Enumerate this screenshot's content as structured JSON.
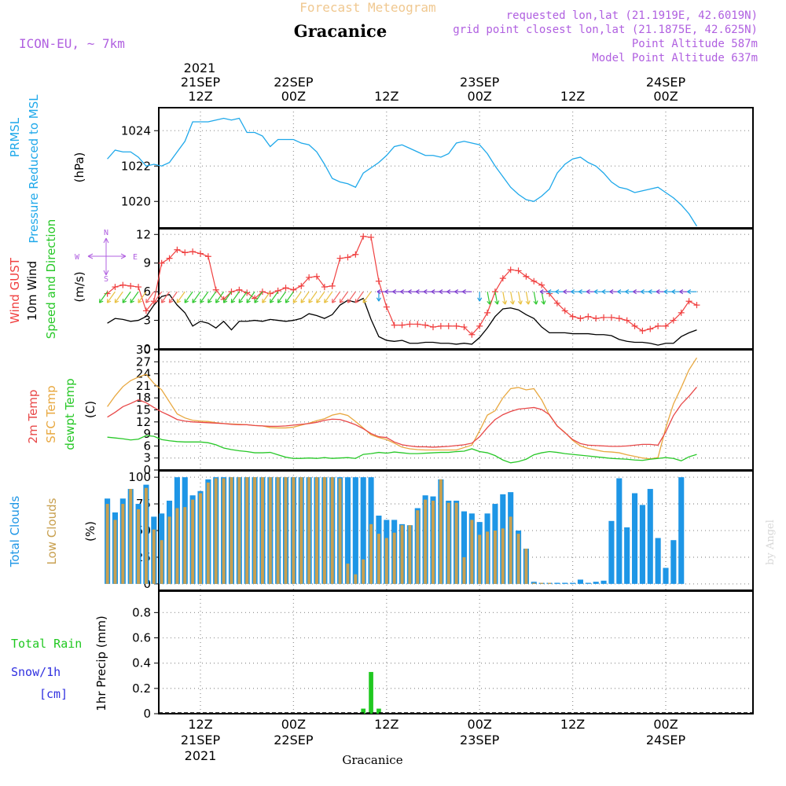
{
  "header": {
    "meteogram_title": "Forecast Meteogram",
    "location": "Gracanice",
    "model": "ICON-EU, ~ 7km",
    "requested": "requested lon,lat (21.1919E, 42.6019N)",
    "grid_point": "grid point closest lon,lat (21.1875E, 42.625N)",
    "point_altitude": "Point Altitude 587m",
    "model_altitude": "Model Point Altitude 637m"
  },
  "footer": {
    "location": "Gracanice",
    "credit": "by Angel"
  },
  "time_axis": {
    "top_year": "2021",
    "ticks": [
      {
        "hour": 12,
        "line1": "21SEP",
        "line2": "12Z"
      },
      {
        "hour": 24,
        "line1": "22SEP",
        "line2": "00Z"
      },
      {
        "hour": 36,
        "line1": "",
        "line2": "12Z"
      },
      {
        "hour": 48,
        "line1": "23SEP",
        "line2": "00Z"
      },
      {
        "hour": 60,
        "line1": "",
        "line2": "12Z"
      },
      {
        "hour": 72,
        "line1": "24SEP",
        "line2": "00Z"
      }
    ],
    "bottom_ticks": [
      {
        "hour": 12,
        "line1": "12Z",
        "line2": "21SEP",
        "line3": "2021"
      },
      {
        "hour": 24,
        "line1": "00Z",
        "line2": "22SEP",
        "line3": ""
      },
      {
        "hour": 36,
        "line1": "12Z",
        "line2": "",
        "line3": ""
      },
      {
        "hour": 48,
        "line1": "00Z",
        "line2": "23SEP",
        "line3": ""
      },
      {
        "hour": 60,
        "line1": "12Z",
        "line2": "",
        "line3": ""
      },
      {
        "hour": 72,
        "line1": "00Z",
        "line2": "24SEP",
        "line3": ""
      }
    ]
  },
  "panel_labels": {
    "pressure": {
      "line1": "PRMSL",
      "line2": "Pressure Reduced to MSL",
      "unit": "(hPa)"
    },
    "wind": {
      "gust": "Wind GUST",
      "wind10m": "10m Wind",
      "speed_dir": "Speed and Direction",
      "unit": "(m/s)",
      "compass_n": "N",
      "compass_s": "S",
      "compass_w": "W",
      "compass_e": "E"
    },
    "temp": {
      "t2m": "2m Temp",
      "sfc": "SFC Temp",
      "dewpt": "dewpt Temp",
      "unit": "(C)"
    },
    "clouds": {
      "total": "Total Clouds",
      "low": "Low Clouds",
      "unit": "(%)"
    },
    "precip": {
      "rain": "Total  Rain",
      "snow": "Snow/1h",
      "snow_unit": "[cm]",
      "axis": "1hr Precip (mm)"
    }
  },
  "colors": {
    "pressure": "#1ea8ea",
    "gust": "#f04040",
    "wind10m": "#000000",
    "t2m": "#e84848",
    "sfc": "#e8a840",
    "dewpt": "#28c828",
    "total_clouds": "#1e96e6",
    "low_clouds": "#c8a050",
    "rain": "#20c820",
    "purple": "#b060e0",
    "title_orange": "#f0c890"
  },
  "chart_data": [
    {
      "type": "line",
      "title": "PRMSL Pressure Reduced to MSL",
      "ylabel": "(hPa)",
      "x_start_hour": 0,
      "x_step_hours": 1,
      "xlim": [
        0,
        77
      ],
      "ylim": [
        1018.5,
        1025.3
      ],
      "yticks": [
        1020,
        1022,
        1024
      ],
      "series": [
        {
          "name": "PRMSL",
          "values": [
            1022.4,
            1022.9,
            1022.8,
            1022.8,
            1022.5,
            1022.0,
            1022.1,
            1022.0,
            1022.2,
            1022.8,
            1023.4,
            1024.5,
            1024.5,
            1024.5,
            1024.6,
            1024.7,
            1024.6,
            1024.7,
            1023.9,
            1023.9,
            1023.7,
            1023.1,
            1023.5,
            1023.5,
            1023.5,
            1023.3,
            1023.2,
            1022.8,
            1022.1,
            1021.3,
            1021.1,
            1021.0,
            1020.8,
            1021.6,
            1021.9,
            1022.2,
            1022.6,
            1023.1,
            1023.2,
            1023.0,
            1022.8,
            1022.6,
            1022.6,
            1022.5,
            1022.7,
            1023.3,
            1023.4,
            1023.3,
            1023.2,
            1022.7,
            1022.0,
            1021.4,
            1020.8,
            1020.4,
            1020.1,
            1020.0,
            1020.3,
            1020.7,
            1021.6,
            1022.1,
            1022.4,
            1022.5,
            1022.2,
            1022.0,
            1021.6,
            1021.1,
            1020.8,
            1020.7,
            1020.5,
            1020.6,
            1020.7,
            1020.8,
            1020.5,
            1020.2,
            1019.8,
            1019.3,
            1018.6
          ]
        }
      ]
    },
    {
      "type": "line",
      "title": "Wind GUST / 10m Wind",
      "ylabel": "(m/s)",
      "x_start_hour": 0,
      "x_step_hours": 1,
      "xlim": [
        0,
        77
      ],
      "ylim": [
        0,
        12.6
      ],
      "yticks": [
        0,
        3,
        6,
        9,
        12
      ],
      "series": [
        {
          "name": "Wind GUST",
          "values": [
            5.8,
            6.5,
            6.7,
            6.6,
            6.5,
            4.0,
            5.0,
            9.0,
            9.5,
            10.4,
            10.1,
            10.2,
            10.0,
            9.7,
            6.2,
            5.2,
            6.0,
            6.2,
            5.9,
            5.3,
            6.0,
            5.8,
            6.1,
            6.4,
            6.2,
            6.6,
            7.5,
            7.6,
            6.5,
            6.6,
            9.5,
            9.6,
            9.9,
            11.8,
            11.7,
            7.1,
            4.4,
            2.5,
            2.5,
            2.6,
            2.6,
            2.5,
            2.3,
            2.4,
            2.4,
            2.4,
            2.3,
            1.5,
            2.4,
            3.8,
            6.0,
            7.4,
            8.3,
            8.2,
            7.6,
            7.1,
            6.7,
            5.8,
            4.8,
            4.0,
            3.4,
            3.2,
            3.4,
            3.2,
            3.3,
            3.3,
            3.2,
            3.0,
            2.4,
            1.9,
            2.1,
            2.4,
            2.4,
            3.0,
            3.8,
            5.0,
            4.6
          ]
        },
        {
          "name": "10m Wind",
          "values": [
            2.7,
            3.2,
            3.1,
            2.9,
            3.0,
            3.4,
            4.6,
            5.5,
            5.7,
            4.6,
            3.8,
            2.4,
            2.9,
            2.7,
            2.2,
            2.9,
            2.0,
            2.9,
            2.9,
            3.0,
            2.9,
            3.1,
            3.0,
            2.9,
            3.0,
            3.2,
            3.7,
            3.5,
            3.2,
            3.6,
            4.6,
            5.1,
            4.9,
            5.3,
            3.1,
            1.3,
            0.9,
            0.8,
            0.9,
            0.6,
            0.6,
            0.7,
            0.7,
            0.6,
            0.6,
            0.5,
            0.6,
            0.5,
            1.2,
            2.2,
            3.4,
            4.2,
            4.3,
            4.1,
            3.6,
            3.2,
            2.3,
            1.7,
            1.7,
            1.7,
            1.6,
            1.6,
            1.6,
            1.5,
            1.5,
            1.4,
            1.0,
            0.8,
            0.7,
            0.7,
            0.6,
            0.4,
            0.6,
            0.6,
            1.3,
            1.7,
            2.0
          ]
        }
      ],
      "wind_arrows": "direction arrows drawn along the 6 m/s line, colour-coded by speed"
    },
    {
      "type": "line",
      "title": "2m / SFC / dewpt Temp",
      "ylabel": "(C)",
      "x_start_hour": 0,
      "x_step_hours": 1,
      "xlim": [
        0,
        77
      ],
      "ylim": [
        0,
        30
      ],
      "yticks": [
        0,
        3,
        6,
        9,
        12,
        15,
        18,
        21,
        24,
        27,
        30
      ],
      "series": [
        {
          "name": "2m Temp",
          "values": [
            13.2,
            14.4,
            15.8,
            16.6,
            17.5,
            16.8,
            15.6,
            14.5,
            13.6,
            12.6,
            12.2,
            12.0,
            11.9,
            11.8,
            11.7,
            11.6,
            11.4,
            11.3,
            11.3,
            11.1,
            11.0,
            10.9,
            10.9,
            11.0,
            11.2,
            11.4,
            11.6,
            11.9,
            12.4,
            12.7,
            12.6,
            12.0,
            11.3,
            10.3,
            9.1,
            8.3,
            8.1,
            7.0,
            6.3,
            6.0,
            5.8,
            5.8,
            5.7,
            5.8,
            5.9,
            6.1,
            6.3,
            6.7,
            8.3,
            10.6,
            12.6,
            13.8,
            14.6,
            15.2,
            15.4,
            15.6,
            15.1,
            13.8,
            11.0,
            9.3,
            7.6,
            6.6,
            6.2,
            6.1,
            6.0,
            5.9,
            5.9,
            6.0,
            6.2,
            6.4,
            6.4,
            6.2,
            9.5,
            13.6,
            16.4,
            18.4,
            20.7
          ]
        },
        {
          "name": "SFC Temp",
          "values": [
            15.8,
            18.5,
            20.8,
            22.3,
            23.2,
            23.9,
            21.6,
            20.0,
            17.0,
            14.0,
            13.0,
            12.4,
            12.2,
            12.1,
            11.8,
            11.6,
            11.5,
            11.4,
            11.3,
            11.1,
            11.0,
            10.6,
            10.5,
            10.5,
            10.7,
            11.2,
            11.7,
            12.3,
            12.8,
            13.7,
            14.1,
            13.6,
            12.1,
            10.5,
            8.8,
            8.1,
            7.6,
            6.7,
            5.7,
            5.3,
            5.1,
            5.0,
            5.0,
            5.0,
            5.0,
            5.0,
            5.6,
            6.2,
            9.8,
            13.7,
            14.8,
            18.0,
            20.3,
            20.6,
            20.0,
            20.3,
            17.5,
            13.7,
            11.0,
            9.4,
            7.4,
            6.0,
            5.4,
            5.0,
            4.6,
            4.5,
            4.3,
            3.8,
            3.4,
            3.0,
            2.8,
            3.1,
            10.5,
            16.5,
            20.6,
            25.0,
            28.0
          ]
        },
        {
          "name": "dewpt Temp",
          "values": [
            8.2,
            8.0,
            7.8,
            7.5,
            7.7,
            8.6,
            8.4,
            7.6,
            7.3,
            7.1,
            7.0,
            7.0,
            7.0,
            6.8,
            6.3,
            5.5,
            5.1,
            4.8,
            4.6,
            4.3,
            4.3,
            4.4,
            3.8,
            3.2,
            2.9,
            2.9,
            3.0,
            2.9,
            3.1,
            2.9,
            3.0,
            3.1,
            2.9,
            3.9,
            4.1,
            4.4,
            4.2,
            4.5,
            4.3,
            4.1,
            4.1,
            4.2,
            4.3,
            4.4,
            4.4,
            4.6,
            4.7,
            5.3,
            4.6,
            4.3,
            3.6,
            2.5,
            1.8,
            2.1,
            2.7,
            3.8,
            4.3,
            4.6,
            4.4,
            4.1,
            3.9,
            3.7,
            3.5,
            3.3,
            3.1,
            2.9,
            2.8,
            2.7,
            2.5,
            2.4,
            2.7,
            2.9,
            3.1,
            2.9,
            2.3,
            3.3,
            3.9
          ]
        }
      ]
    },
    {
      "type": "bar",
      "title": "Total / Low Clouds",
      "ylabel": "(%)",
      "x_start_hour": 0,
      "x_step_hours": 1,
      "ylim": [
        0,
        100
      ],
      "yticks": [
        0,
        25,
        50,
        75,
        100
      ],
      "series": [
        {
          "name": "Total Clouds",
          "values": [
            80,
            67,
            80,
            89,
            75,
            93,
            63,
            66,
            78,
            100,
            100,
            83,
            87,
            98,
            100,
            100,
            100,
            100,
            100,
            100,
            100,
            100,
            100,
            100,
            100,
            100,
            100,
            100,
            100,
            100,
            100,
            100,
            100,
            100,
            100,
            64,
            60,
            60,
            56,
            55,
            71,
            83,
            82,
            98,
            78,
            78,
            68,
            66,
            58,
            66,
            75,
            84,
            86,
            50,
            33,
            2,
            1,
            1,
            1,
            1,
            1,
            4,
            1,
            2,
            3,
            59,
            99,
            53,
            85,
            74,
            89,
            43,
            15,
            41,
            100,
            0,
            0
          ]
        },
        {
          "name": "Low Clouds",
          "values": [
            75,
            60,
            75,
            89,
            70,
            90,
            51,
            41,
            63,
            71,
            72,
            79,
            85,
            95,
            99,
            99,
            100,
            100,
            100,
            100,
            100,
            100,
            100,
            100,
            100,
            100,
            100,
            100,
            100,
            100,
            99,
            19,
            9,
            23,
            56,
            47,
            43,
            48,
            55,
            55,
            69,
            79,
            78,
            98,
            76,
            76,
            25,
            60,
            46,
            49,
            50,
            52,
            63,
            47,
            33,
            1,
            1,
            1,
            0,
            0,
            0,
            0,
            0,
            0,
            0,
            0,
            0,
            0,
            0,
            0,
            0,
            0,
            0,
            0,
            0,
            0,
            0
          ]
        }
      ]
    },
    {
      "type": "bar",
      "title": "1hr Precip",
      "ylabel": "1hr Precip (mm)",
      "x_start_hour": 0,
      "x_step_hours": 1,
      "ylim": [
        0,
        0.97
      ],
      "yticks": [
        0,
        0.2,
        0.4,
        0.6,
        0.8
      ],
      "series": [
        {
          "name": "Total Rain",
          "values": [
            0,
            0,
            0,
            0,
            0,
            0,
            0,
            0,
            0,
            0,
            0,
            0,
            0,
            0,
            0,
            0,
            0,
            0,
            0,
            0,
            0,
            0,
            0,
            0,
            0,
            0,
            0,
            0,
            0,
            0,
            0,
            0,
            0,
            0.04,
            0.33,
            0.04,
            0,
            0,
            0,
            0,
            0,
            0,
            0,
            0,
            0,
            0,
            0,
            0,
            0,
            0,
            0,
            0,
            0,
            0,
            0,
            0,
            0,
            0,
            0,
            0,
            0,
            0,
            0,
            0,
            0,
            0,
            0,
            0,
            0,
            0,
            0,
            0,
            0,
            0,
            0,
            0,
            0
          ]
        },
        {
          "name": "Snow/1h",
          "values": []
        }
      ]
    }
  ]
}
